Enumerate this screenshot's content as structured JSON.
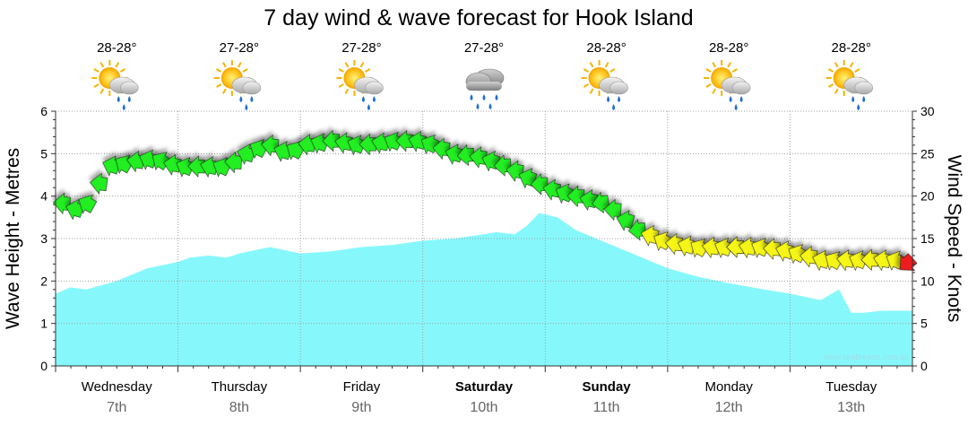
{
  "chart_data": {
    "type": "area",
    "title": "7 day wind & wave forecast for Hook Island",
    "ylabel_left": "Wave Height - Metres",
    "ylabel_right": "Wind Speed - Knots",
    "ylim_left": [
      0,
      6
    ],
    "ylim_right": [
      0,
      30
    ],
    "left_ticks": [
      "0",
      "1",
      "2",
      "3",
      "4",
      "5",
      "6"
    ],
    "right_ticks": [
      "0",
      "5",
      "10",
      "15",
      "20",
      "25",
      "30"
    ],
    "watermark": "www.seabreeze.com.au",
    "days": [
      {
        "name": "Wednesday",
        "date": "7th",
        "temp": "28-28°",
        "weather": "sun-cloud-rain-icon",
        "bold": false
      },
      {
        "name": "Thursday",
        "date": "8th",
        "temp": "27-28°",
        "weather": "sun-cloud-rain-icon",
        "bold": false
      },
      {
        "name": "Friday",
        "date": "9th",
        "temp": "27-28°",
        "weather": "sun-cloud-rain-icon",
        "bold": false
      },
      {
        "name": "Saturday",
        "date": "10th",
        "temp": "27-28°",
        "weather": "cloud-rain-icon",
        "bold": true
      },
      {
        "name": "Sunday",
        "date": "11th",
        "temp": "28-28°",
        "weather": "sun-cloud-rain-icon",
        "bold": true
      },
      {
        "name": "Monday",
        "date": "12th",
        "temp": "28-28°",
        "weather": "sun-cloud-rain-icon",
        "bold": false
      },
      {
        "name": "Tuesday",
        "date": "13th",
        "temp": "28-28°",
        "weather": "sun-cloud-rain-icon",
        "bold": false
      }
    ],
    "wave_series": {
      "name": "Wave Height",
      "x_days": [
        0,
        0.12,
        0.25,
        0.5,
        0.75,
        1,
        1.1,
        1.25,
        1.4,
        1.5,
        1.75,
        2,
        2.25,
        2.5,
        2.75,
        3,
        3.25,
        3.5,
        3.6,
        3.75,
        3.85,
        3.95,
        4.1,
        4.25,
        4.5,
        4.75,
        5,
        5.25,
        5.5,
        5.75,
        6,
        6.25,
        6.4,
        6.5,
        6.6,
        6.75,
        6.85,
        7
      ],
      "values": [
        1.7,
        1.85,
        1.8,
        2.0,
        2.3,
        2.45,
        2.55,
        2.6,
        2.55,
        2.65,
        2.8,
        2.65,
        2.7,
        2.8,
        2.85,
        2.95,
        3.0,
        3.1,
        3.15,
        3.1,
        3.3,
        3.6,
        3.5,
        3.2,
        2.9,
        2.6,
        2.3,
        2.1,
        1.95,
        1.82,
        1.7,
        1.55,
        1.8,
        1.25,
        1.25,
        1.3,
        1.3,
        1.3
      ]
    },
    "wind_series": {
      "name": "Wind Speed",
      "x_days": [
        0,
        0.15,
        0.3,
        0.4,
        0.6,
        0.8,
        1.0,
        1.2,
        1.4,
        1.5,
        1.6,
        1.75,
        1.9,
        2.0,
        2.25,
        2.5,
        2.75,
        3.0,
        3.25,
        3.5,
        3.75,
        4.0,
        4.25,
        4.5,
        4.75,
        5.0,
        5.25,
        5.5,
        5.75,
        6.0,
        6.25,
        6.5,
        6.75,
        6.9,
        7.0
      ],
      "values": [
        19.5,
        18.5,
        19.5,
        23.5,
        24.0,
        24.5,
        23.5,
        23.5,
        23.5,
        24.5,
        25.5,
        26.0,
        25.0,
        26.0,
        26.5,
        26.0,
        26.5,
        26.5,
        25.0,
        24.5,
        23.0,
        21.0,
        20.0,
        19.0,
        16.0,
        14.5,
        14.0,
        14.0,
        14.0,
        13.5,
        12.5,
        12.5,
        12.5,
        12.5,
        11.5
      ],
      "color_thresholds": {
        "green_min": 16,
        "yellow_min": 12,
        "red_below": 12
      },
      "colors": {
        "green": "#22ee22",
        "yellow": "#f5f515",
        "red": "#ee1a1a"
      }
    },
    "colors": {
      "wave_fill": "#86f8fc",
      "grid": "#a0a0a0",
      "axis": "#333333"
    }
  }
}
